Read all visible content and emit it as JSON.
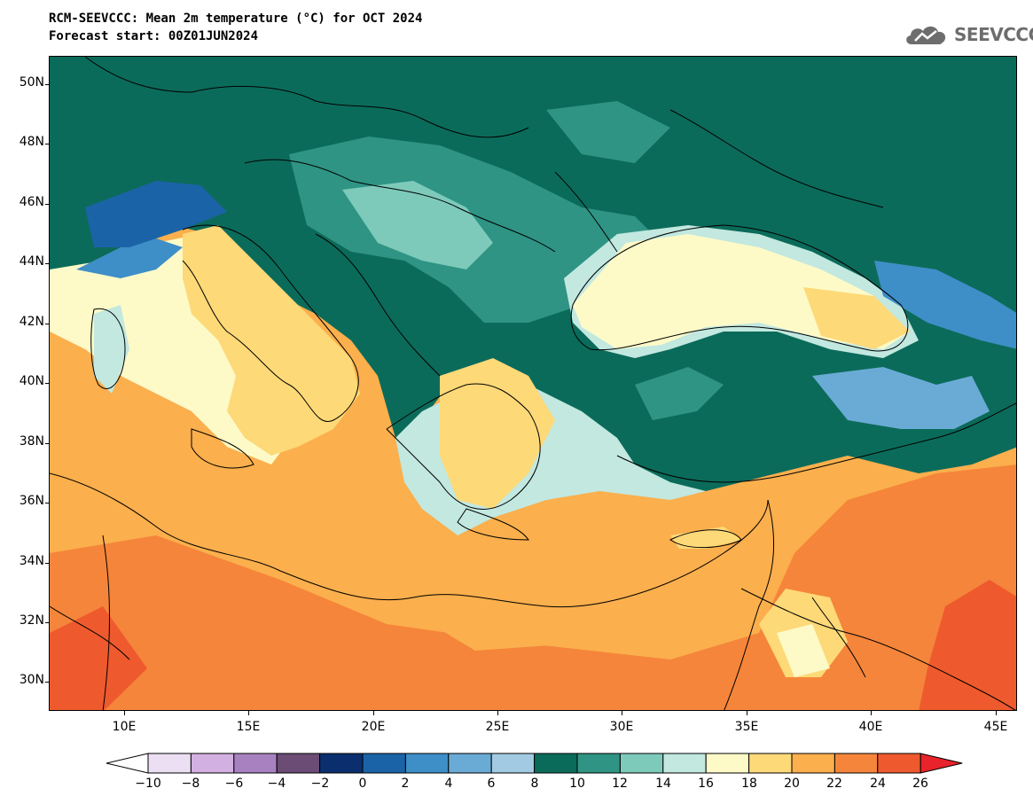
{
  "header": {
    "title": "RCM-SEEVCCC: Mean 2m temperature (°C) for OCT 2024",
    "subtitle": "Forecast start: 00Z01JUN2024"
  },
  "logo": {
    "text": "SEEVCCC",
    "icon": "cloud-icon",
    "color": "#6d6d6d"
  },
  "map": {
    "lat_labels": [
      "50N",
      "48N",
      "46N",
      "44N",
      "42N",
      "40N",
      "38N",
      "36N",
      "34N",
      "32N",
      "30N"
    ],
    "lon_labels": [
      "10E",
      "15E",
      "20E",
      "25E",
      "30E",
      "35E",
      "40E",
      "45E"
    ]
  },
  "colorbar": {
    "tick_labels": [
      "−10",
      "−8",
      "−6",
      "−4",
      "−2",
      "0",
      "2",
      "4",
      "6",
      "8",
      "10",
      "12",
      "14",
      "16",
      "18",
      "20",
      "22",
      "24",
      "26"
    ],
    "under_color": "#ffffff",
    "over_color": "#e8232b",
    "colors": [
      "#ecdff4",
      "#d3b0e2",
      "#a882c0",
      "#6b4c74",
      "#0b2f6e",
      "#1b63a7",
      "#3e8ec7",
      "#6aabd6",
      "#a2cbe3",
      "#0b6b5a",
      "#2f9484",
      "#7dcabb",
      "#c2e8e0",
      "#fdfac8",
      "#fdd978",
      "#fbaf4d",
      "#f5853a",
      "#ee5a2e"
    ]
  }
}
